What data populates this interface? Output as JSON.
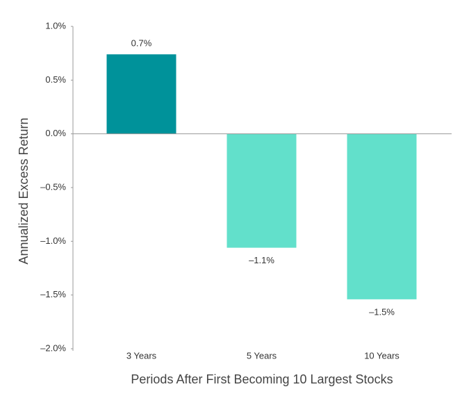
{
  "chart_data": {
    "type": "bar",
    "y_label": "Annualized Excess Return",
    "x_label": "Periods After First Becoming 10 Largest Stocks",
    "categories": [
      "3 Years",
      "5 Years",
      "10 Years"
    ],
    "values": [
      0.74,
      -1.06,
      -1.54
    ],
    "value_labels": [
      "0.7%",
      "–1.1%",
      "–1.5%"
    ],
    "colors": [
      "#00929a",
      "#62e0cb",
      "#62e0cb"
    ],
    "ylim": [
      -2.0,
      1.0
    ],
    "yticks": [
      {
        "value": 1.0,
        "label": "1.0%"
      },
      {
        "value": 0.5,
        "label": "0.5%"
      },
      {
        "value": 0.0,
        "label": "0.0%"
      },
      {
        "value": -0.5,
        "label": "–0.5%"
      },
      {
        "value": -1.0,
        "label": "–1.0%"
      },
      {
        "value": -1.5,
        "label": "–1.5%"
      },
      {
        "value": -2.0,
        "label": "–2.0%"
      }
    ],
    "grid": false
  }
}
